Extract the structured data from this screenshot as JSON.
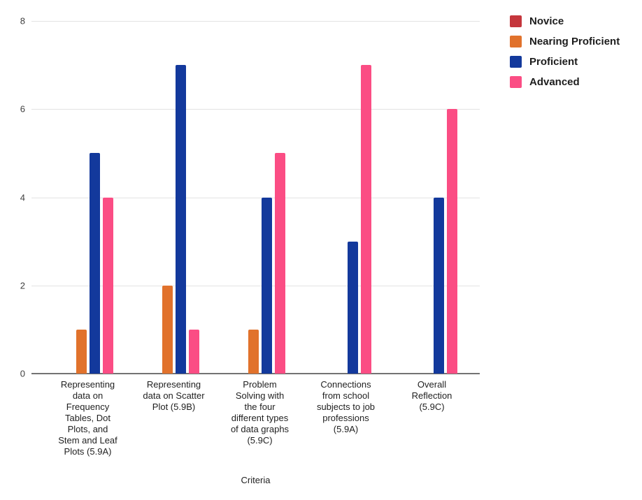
{
  "chart_data": {
    "type": "bar",
    "title": "",
    "xlabel": "Criteria",
    "ylabel": "",
    "ylim": [
      0,
      8
    ],
    "yticks": [
      0,
      2,
      4,
      6,
      8
    ],
    "grid": true,
    "legend_position": "top-right",
    "categories": [
      "Representing data on Frequency Tables, Dot Plots, and Stem and Leaf Plots (5.9A)",
      "Representing data on Scatter Plot (5.9B)",
      "Problem Solving with the four different types of data graphs (5.9C)",
      "Connections from school subjects to job professions (5.9A)",
      "Overall Reflection (5.9C)"
    ],
    "categories_lines": [
      [
        "Representing",
        "data on",
        "Frequency",
        "Tables, Dot",
        "Plots, and",
        "Stem and Leaf",
        "Plots (5.9A)"
      ],
      [
        "Representing",
        "data on Scatter",
        "Plot (5.9B)"
      ],
      [
        "Problem",
        "Solving with",
        "the four",
        "different types",
        "of data graphs",
        "(5.9C)"
      ],
      [
        "Connections",
        "from school",
        "subjects to job",
        "professions",
        "(5.9A)"
      ],
      [
        "Overall",
        "Reflection",
        "(5.9C)"
      ]
    ],
    "series": [
      {
        "name": "Novice",
        "color": "#c5363c",
        "values": [
          0,
          0,
          0,
          0,
          0
        ]
      },
      {
        "name": "Nearing Proficient",
        "color": "#e1722c",
        "values": [
          1,
          2,
          1,
          0,
          0
        ]
      },
      {
        "name": "Proficient",
        "color": "#13399c",
        "values": [
          5,
          7,
          4,
          3,
          4
        ]
      },
      {
        "name": "Advanced",
        "color": "#fb4d84",
        "values": [
          4,
          1,
          5,
          7,
          6
        ]
      }
    ],
    "colors": {
      "gridline": "#e3e3e3",
      "baseline": "#737373",
      "tick_text": "#3f3f3f",
      "label_text": "#1f1f1f"
    }
  }
}
